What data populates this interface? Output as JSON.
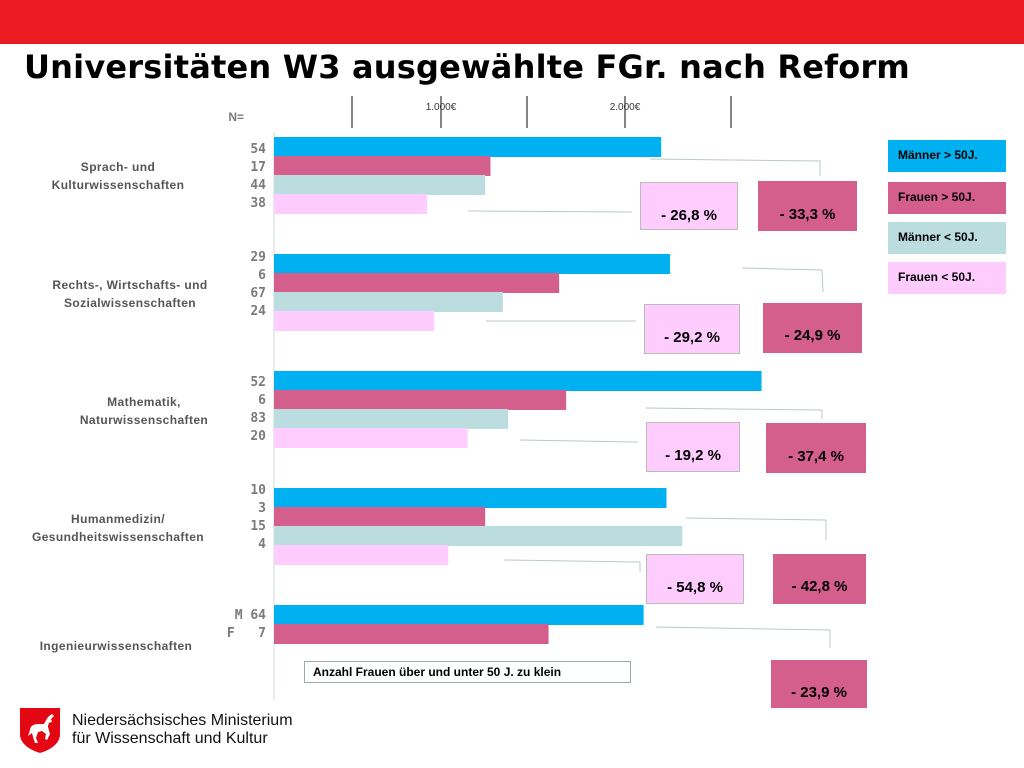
{
  "header": {
    "title": "Universitäten W3 ausgewählte FGr. nach Reform"
  },
  "colors": {
    "topbar": "#ed1c24",
    "maenner_ueber_50": "#00b0f0",
    "frauen_ueber_50": "#d45f8c",
    "maenner_unter_50": "#bcdde0",
    "frauen_unter_50": "#ffccff"
  },
  "chart_data": {
    "type": "bar",
    "orientation": "horizontal",
    "n_label": "N=",
    "axis_ticks": [
      "1.000€",
      "2.000€"
    ],
    "legend": [
      {
        "label": "Männer > 50J.",
        "color": "#00b0f0"
      },
      {
        "label": "Frauen > 50J.",
        "color": "#d45f8c"
      },
      {
        "label": "Männer < 50J.",
        "color": "#bcdde0"
      },
      {
        "label": "Frauen < 50J.",
        "color": "#ffccff"
      }
    ],
    "groups": [
      {
        "category": [
          "Sprach- und",
          "Kulturwissenschaften"
        ],
        "n": [
          "54",
          "17",
          "44",
          "38"
        ],
        "values": [
          2200,
          1230,
          1200,
          870
        ],
        "diff_unter_50": "-  26,8 %",
        "diff_ueber_50": "-  33,3 %"
      },
      {
        "category": [
          "Rechts-, Wirtschafts- und",
          "Sozialwissenschaften"
        ],
        "n": [
          "29",
          "6",
          "67",
          "24"
        ],
        "values": [
          2250,
          1620,
          1300,
          910
        ],
        "diff_unter_50": "-  29,2 %",
        "diff_ueber_50": "-  24,9 %"
      },
      {
        "category": [
          "Mathematik,",
          "Naturwissenschaften"
        ],
        "n": [
          "52",
          "6",
          "83",
          "20"
        ],
        "values": [
          2770,
          1660,
          1330,
          1100
        ],
        "diff_unter_50": "-  19,2 %",
        "diff_ueber_50": "- 37,4 %"
      },
      {
        "category": [
          "Humanmedizin/",
          "Gesundheitswissenschaften"
        ],
        "n": [
          "10",
          "3",
          "15",
          "4"
        ],
        "values": [
          2230,
          1200,
          2320,
          990
        ],
        "diff_unter_50": "-  54,8 %",
        "diff_ueber_50": "- 42,8 %"
      },
      {
        "category": [
          "Ingenieurwissenschaften"
        ],
        "n": [
          "M 64",
          "F   7"
        ],
        "values": [
          2100,
          1560
        ],
        "diff_ueber_50": "-  23,9 %"
      }
    ],
    "note": "Anzahl Frauen über und unter 50 J. zu klein"
  },
  "footer": {
    "ministry_line1": "Niedersächsisches Ministerium",
    "ministry_line2": "für Wissenschaft und Kultur"
  }
}
